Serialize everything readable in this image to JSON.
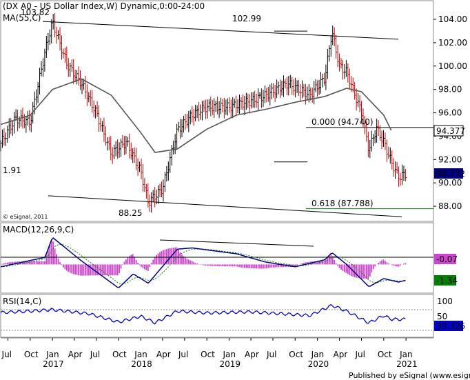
{
  "chart_data": [
    {
      "type": "line",
      "panel": "price",
      "title": "(DX A0 - US Dollar Index,W) Dynamic,0:00-24:00",
      "indicator_label": "MA(55,C)",
      "y_ticks": [
        "104.00",
        "102.00",
        "100.00",
        "98.00",
        "96.00",
        "94.00",
        "92.00",
        "90.00",
        "88.00"
      ],
      "ylim": [
        87.0,
        105.3
      ],
      "series": [
        {
          "name": "DX A0",
          "color": "#000000",
          "x": [
            "2016-06",
            "2016-08",
            "2016-10",
            "2016-12",
            "2017-01",
            "2017-03",
            "2017-05",
            "2017-07",
            "2017-09",
            "2017-11",
            "2018-01",
            "2018-02",
            "2018-04",
            "2018-06",
            "2018-08",
            "2018-10",
            "2019-01",
            "2019-04",
            "2019-06",
            "2019-09",
            "2019-12",
            "2020-02",
            "2020-03",
            "2020-04",
            "2020-05",
            "2020-07",
            "2020-08",
            "2020-09",
            "2020-10",
            "2020-11",
            "2020-12",
            "2021-01"
          ],
          "values": [
            93.4,
            95.5,
            95.2,
            101.2,
            103.8,
            100.2,
            98.5,
            96.0,
            92.5,
            93.5,
            91.0,
            88.3,
            89.5,
            94.5,
            95.8,
            96.5,
            96.5,
            97.0,
            97.5,
            98.5,
            97.5,
            99.0,
            102.99,
            100.0,
            99.5,
            96.0,
            92.8,
            94.7,
            93.5,
            91.8,
            90.5,
            90.77
          ]
        },
        {
          "name": "MA(55,C)",
          "color": "#555555",
          "x": [
            "2016-06",
            "2016-10",
            "2017-01",
            "2017-05",
            "2017-09",
            "2018-01",
            "2018-03",
            "2018-06",
            "2018-10",
            "2019-02",
            "2019-06",
            "2019-10",
            "2020-02",
            "2020-05",
            "2020-07",
            "2020-10",
            "2020-11"
          ],
          "values": [
            95.0,
            95.8,
            98.0,
            98.9,
            97.5,
            94.3,
            92.6,
            92.9,
            94.6,
            95.8,
            96.3,
            96.9,
            97.4,
            98.1,
            97.8,
            95.8,
            94.5
          ]
        }
      ],
      "annotations": {
        "high_2017": "103.82",
        "high_2020": "102.99",
        "low_2018": "88.25",
        "left_value": "1.91",
        "fib_0": "0.000 (94.740)",
        "fib_618": "0.618 (87.788)",
        "last_price": "90.772",
        "level_marker": "94.377",
        "copyright": "© eSignal, 2011"
      },
      "colors": {
        "up": "#000000",
        "down": "#cc0000",
        "fib_618": "#008000",
        "last_badge": "#000080"
      }
    },
    {
      "type": "line",
      "panel": "macd",
      "title": "MACD(12,26,9,C)",
      "ylim": [
        -2.2,
        2.6
      ],
      "series": [
        {
          "name": "MACD",
          "color": "#000080",
          "x": [
            "2016-06",
            "2016-12",
            "2017-01",
            "2017-05",
            "2017-10",
            "2017-12",
            "2018-02",
            "2018-06",
            "2018-08",
            "2019-02",
            "2019-06",
            "2019-10",
            "2020-02",
            "2020-03",
            "2020-05",
            "2020-08",
            "2020-10",
            "2020-12",
            "2021-01"
          ],
          "values": [
            -0.2,
            0.6,
            2.3,
            0.3,
            -2.0,
            -0.8,
            -1.6,
            1.3,
            1.4,
            0.9,
            0.2,
            -0.2,
            0.4,
            1.0,
            0.0,
            -1.9,
            -1.2,
            -1.5,
            -1.34
          ]
        }
      ],
      "annotations": {
        "macd_value": "-0.07",
        "signal_value": "-1.34"
      },
      "colors": {
        "histogram": "#cc44cc",
        "signal": "#008000",
        "macd_badge": "#cc44cc",
        "signal_badge": "#008000"
      }
    },
    {
      "type": "line",
      "panel": "rsi",
      "title": "RSI(14,C)",
      "ylim": [
        0,
        100
      ],
      "y_ticks": [
        "100",
        "50"
      ],
      "series": [
        {
          "name": "RSI(14,C)",
          "color": "#0000cc",
          "x": [
            "2016-06",
            "2016-10",
            "2017-01",
            "2017-06",
            "2017-10",
            "2018-01",
            "2018-03",
            "2018-06",
            "2018-10",
            "2019-04",
            "2019-08",
            "2019-12",
            "2020-03",
            "2020-05",
            "2020-08",
            "2020-10",
            "2020-11",
            "2021-01"
          ],
          "values": [
            58,
            62,
            66,
            55,
            32,
            48,
            30,
            62,
            57,
            60,
            55,
            50,
            78,
            62,
            30,
            50,
            40,
            39.3
          ]
        }
      ],
      "annotations": {
        "rsi_value": "39.326"
      },
      "colors": {
        "rsi_badge": "#0000cc"
      }
    }
  ],
  "x_axis": {
    "months": [
      "Jul",
      "Oct",
      "Jan",
      "Apr",
      "Jul",
      "Oct",
      "Jan",
      "Apr",
      "Jul",
      "Oct",
      "Jan",
      "Apr",
      "Jul",
      "Oct",
      "Jan",
      "Apr",
      "Jul",
      "Oct",
      "Jan"
    ],
    "years": [
      "2017",
      "2018",
      "2019",
      "2020",
      "2021"
    ]
  },
  "footer": "Published by eSignal (www.esignal.com)"
}
